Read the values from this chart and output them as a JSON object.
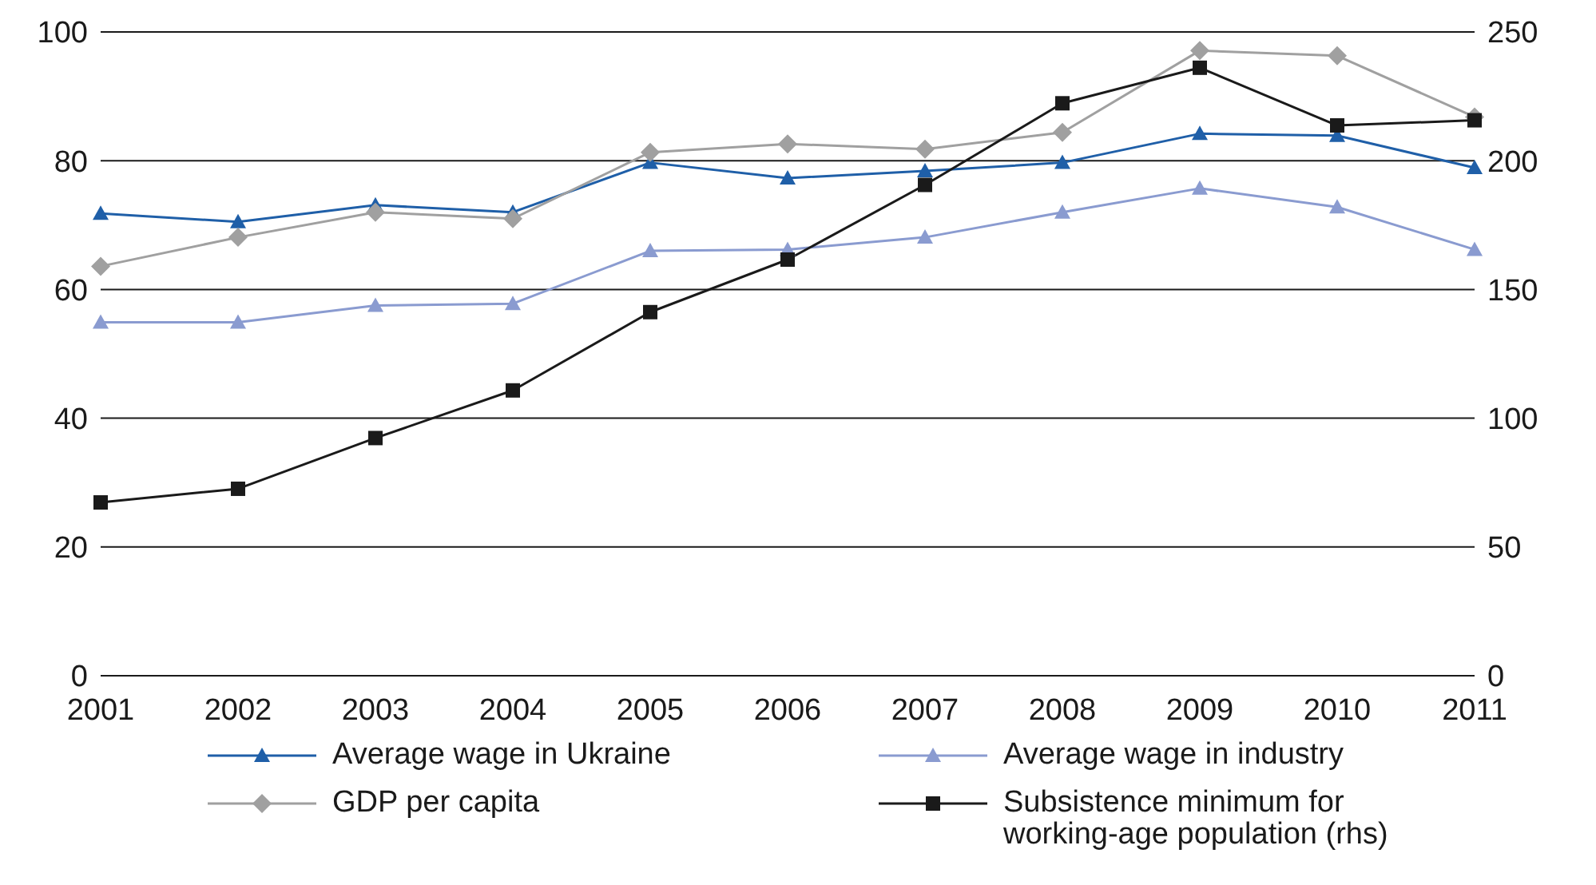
{
  "chart_data": {
    "type": "line",
    "categories": [
      "2001",
      "2002",
      "2003",
      "2004",
      "2005",
      "2006",
      "2007",
      "2008",
      "2009",
      "2010",
      "2011"
    ],
    "series": [
      {
        "name": "Average wage in Ukraine",
        "color": "#1f5fa8",
        "marker": "triangle",
        "values": [
          71.8,
          70.5,
          73.1,
          72,
          79.7,
          77.3,
          78.4,
          79.7,
          84.2,
          83.9,
          78.9
        ]
      },
      {
        "name": "Average wage in industry",
        "color": "#8a9bd0",
        "marker": "triangle",
        "values": [
          54.9,
          54.9,
          57.5,
          57.8,
          66,
          66.2,
          68.1,
          72,
          75.7,
          72.8,
          66.2
        ]
      },
      {
        "name": "GDP per capita",
        "color": "#a0a0a0",
        "marker": "diamond",
        "values": [
          63.6,
          68.1,
          72,
          71,
          81.3,
          82.6,
          81.8,
          84.4,
          97.1,
          96.3,
          86.8
        ]
      },
      {
        "name": "Subsistence minimum for working-age population (rhs)",
        "color": "#1a1a1a",
        "marker": "square",
        "axis": "y2",
        "values": [
          67.3,
          72.6,
          92.3,
          110.8,
          141.2,
          161.6,
          190.6,
          222.3,
          236.1,
          213.7,
          215.7
        ]
      }
    ],
    "ylim": [
      0,
      100
    ],
    "yticks": [
      0,
      20,
      40,
      60,
      80,
      100
    ],
    "y2lim": [
      0,
      250
    ],
    "y2ticks": [
      0,
      50,
      100,
      150,
      200,
      250
    ],
    "grid": "y",
    "legend": "bottom",
    "line_style": "solid"
  }
}
